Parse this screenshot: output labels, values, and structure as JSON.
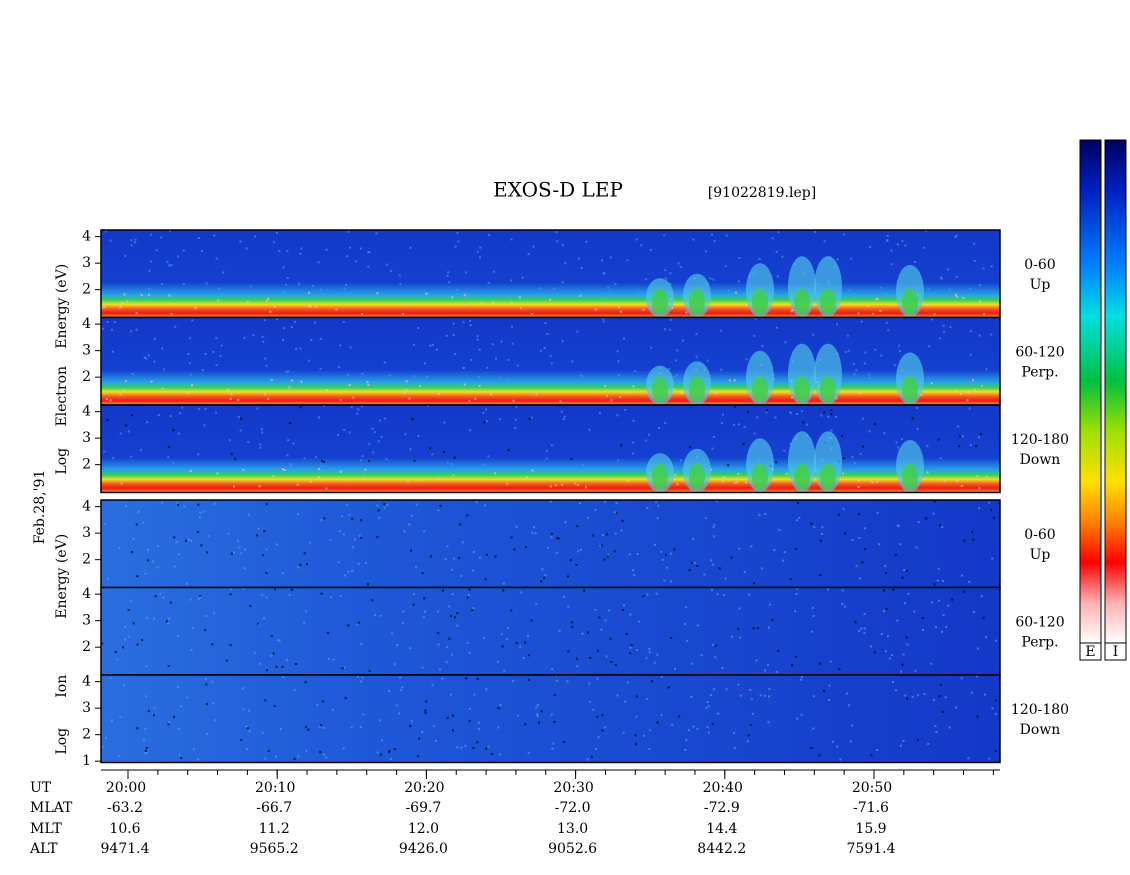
{
  "chart_data": {
    "type": "spectrogram",
    "title": "EXOS-D LEP",
    "file_label": "[91022819.lep]",
    "date_label": "Feb.28,'91",
    "ylim": [
      0.95,
      4.25
    ],
    "groups": [
      {
        "species": "electron",
        "ylabel": [
          "Log",
          "Electron",
          "Energy (eV)"
        ],
        "panels": [
          {
            "label": [
              "0-60",
              "Up"
            ],
            "yticks": [
              2,
              3,
              4
            ]
          },
          {
            "label": [
              "60-120",
              "Perp."
            ],
            "yticks": [
              2,
              3,
              4
            ]
          },
          {
            "label": [
              "120-180",
              "Down"
            ],
            "yticks": [
              2,
              3,
              4
            ]
          }
        ]
      },
      {
        "species": "ion",
        "ylabel": [
          "Log",
          "Ion",
          "Energy (eV)"
        ],
        "panels": [
          {
            "label": [
              "0-60",
              "Up"
            ],
            "yticks": [
              2,
              3,
              4
            ]
          },
          {
            "label": [
              "60-120",
              "Perp."
            ],
            "yticks": [
              2,
              3,
              4
            ]
          },
          {
            "label": [
              "120-180",
              "Down"
            ],
            "yticks": [
              1,
              2,
              3,
              4
            ]
          }
        ]
      }
    ],
    "ephemeris": [
      {
        "label": "UT",
        "values": [
          "20:00",
          "20:10",
          "20:20",
          "20:30",
          "20:40",
          "20:50"
        ]
      },
      {
        "label": "MLAT",
        "values": [
          "-63.2",
          "-66.7",
          "-69.7",
          "-72.0",
          "-72.9",
          "-71.6"
        ]
      },
      {
        "label": "MLT",
        "values": [
          "10.6",
          "11.2",
          "12.0",
          "13.0",
          "14.4",
          "15.9"
        ]
      },
      {
        "label": "ALT",
        "values": [
          "9471.4",
          "9565.2",
          "9426.0",
          "9052.6",
          "8442.2",
          "7591.4"
        ]
      }
    ],
    "colorbars": [
      "E",
      "I"
    ]
  }
}
